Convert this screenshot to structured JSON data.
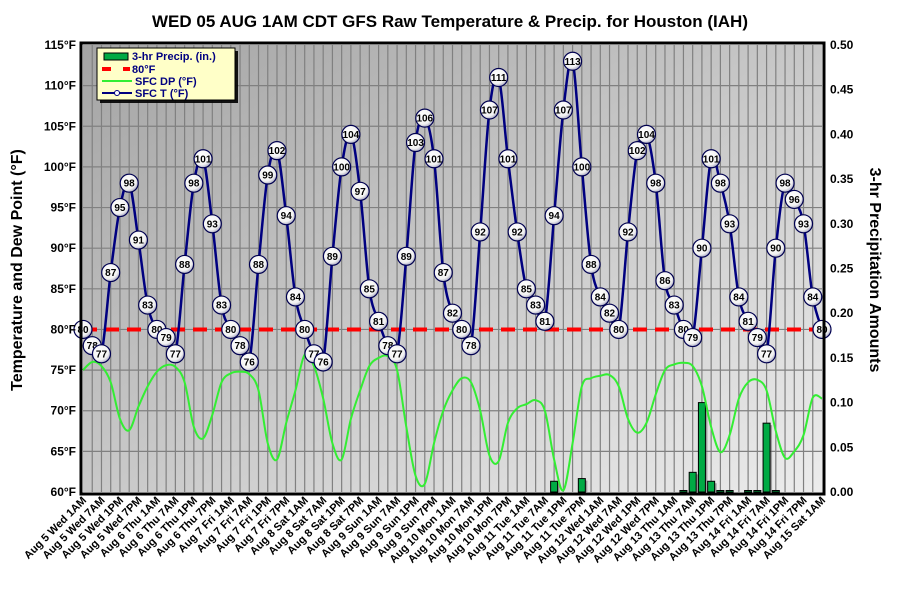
{
  "chart_data": {
    "type": "line",
    "title": "WED 05 AUG 1AM CDT GFS Raw Temperature & Precip. for Houston (IAH)",
    "ylabel": "Temperature and Dew Point (°F)",
    "y2label": "3-hr Precipitation Amounts",
    "ylim": [
      60,
      115
    ],
    "y2lim": [
      0,
      0.5
    ],
    "yticks": [
      "60°F",
      "65°F",
      "70°F",
      "75°F",
      "80°F",
      "85°F",
      "90°F",
      "95°F",
      "100°F",
      "105°F",
      "110°F",
      "115°F"
    ],
    "y2ticks": [
      "0.00",
      "0.05",
      "0.10",
      "0.15",
      "0.20",
      "0.25",
      "0.30",
      "0.35",
      "0.40",
      "0.45",
      "0.50"
    ],
    "legend_position": "top-left",
    "legend": [
      "3-hr Precip. (in.)",
      "80°F",
      "SFC DP (°F)",
      "SFC T (°F)"
    ],
    "colors": {
      "temp": "#000080",
      "dew": "#33ee33",
      "ref": "#ff0000",
      "precip": "#00aa44"
    },
    "reference_value": 80,
    "x_labels": [
      "Aug 5 Wed 1AM",
      "Aug 5 Wed 7AM",
      "Aug 5 Wed 1PM",
      "Aug 5 Wed 7PM",
      "Aug 6 Thu 1AM",
      "Aug 6 Thu 7AM",
      "Aug 6 Thu 1PM",
      "Aug 6 Thu 7PM",
      "Aug 7 Fri 1AM",
      "Aug 7 Fri 7AM",
      "Aug 7 Fri 1PM",
      "Aug 7 Fri 7PM",
      "Aug 8 Sat 1AM",
      "Aug 8 Sat 7AM",
      "Aug 8 Sat 1PM",
      "Aug 8 Sat 7PM",
      "Aug 9 Sun 1AM",
      "Aug 9 Sun 7AM",
      "Aug 9 Sun 1PM",
      "Aug 9 Sun 7PM",
      "Aug 10 Mon 1AM",
      "Aug 10 Mon 7AM",
      "Aug 10 Mon 1PM",
      "Aug 10 Mon 7PM",
      "Aug 11 Tue 1AM",
      "Aug 11 Tue 7AM",
      "Aug 11 Tue 1PM",
      "Aug 11 Tue 7PM",
      "Aug 12 Wed 1AM",
      "Aug 12 Wed 7AM",
      "Aug 12 Wed 1PM",
      "Aug 12 Wed 7PM",
      "Aug 13 Thu 1AM",
      "Aug 13 Thu 7AM",
      "Aug 13 Thu 1PM",
      "Aug 13 Thu 7PM",
      "Aug 14 Fri 1AM",
      "Aug 14 Fri 7AM",
      "Aug 14 Fri 1PM",
      "Aug 14 Fri 7PM",
      "Aug 15 Sat 1AM"
    ],
    "series": [
      {
        "name": "SFC T (°F)",
        "values": [
          80,
          78,
          77,
          87,
          95,
          98,
          91,
          83,
          80,
          79,
          77,
          88,
          98,
          101,
          93,
          83,
          80,
          78,
          76,
          88,
          99,
          102,
          94,
          84,
          80,
          77,
          76,
          89,
          100,
          104,
          97,
          85,
          81,
          78,
          77,
          89,
          103,
          106,
          101,
          87,
          82,
          80,
          78,
          92,
          107,
          111,
          101,
          92,
          85,
          83,
          81,
          94,
          107,
          113,
          100,
          88,
          84,
          82,
          80,
          92,
          102,
          104,
          98,
          86,
          83,
          80,
          79,
          90,
          101,
          98,
          93,
          84,
          81,
          79,
          77,
          90,
          98,
          96,
          93,
          84,
          80
        ]
      },
      {
        "name": "SFC DP (°F)",
        "values": [
          75,
          76,
          75.5,
          73.5,
          69,
          67.6,
          70.5,
          73,
          74.8,
          75.6,
          75.4,
          73.5,
          68,
          66.6,
          69.5,
          73.5,
          74.6,
          74.8,
          74.5,
          72.5,
          66,
          64,
          68.5,
          72.5,
          76.9,
          75.5,
          71.5,
          66,
          64,
          69,
          72.5,
          75.5,
          76.5,
          76.7,
          75,
          68,
          62,
          61,
          66,
          70,
          72.5,
          74,
          73.5,
          70,
          64.5,
          63.8,
          68.5,
          70.3,
          70.8,
          71.3,
          70,
          64,
          60.2,
          66,
          73,
          74,
          74.3,
          74.4,
          73,
          69,
          67.3,
          68.5,
          72,
          75,
          75.7,
          75.9,
          75.5,
          73,
          68,
          64.9,
          67,
          71.5,
          73.5,
          73.8,
          72.5,
          67.5,
          64.2,
          65,
          67,
          71.6,
          71.5
        ]
      },
      {
        "name": "3-hr Precip. (in.)",
        "values": [
          0,
          0,
          0,
          0,
          0,
          0,
          0,
          0,
          0,
          0,
          0,
          0,
          0,
          0,
          0,
          0,
          0,
          0,
          0,
          0,
          0,
          0,
          0,
          0,
          0,
          0,
          0,
          0,
          0,
          0,
          0,
          0,
          0,
          0,
          0,
          0,
          0,
          0,
          0,
          0,
          0,
          0,
          0,
          0,
          0,
          0,
          0,
          0,
          0,
          0,
          0,
          0.012,
          0,
          0,
          0.015,
          0,
          0,
          0,
          0,
          0,
          0,
          0,
          0,
          0,
          0,
          0.001,
          0.022,
          0.1,
          0.012,
          0.001,
          0.001,
          0,
          0.001,
          0.001,
          0.077,
          0.001,
          0,
          0,
          0,
          0,
          0
        ]
      }
    ]
  }
}
